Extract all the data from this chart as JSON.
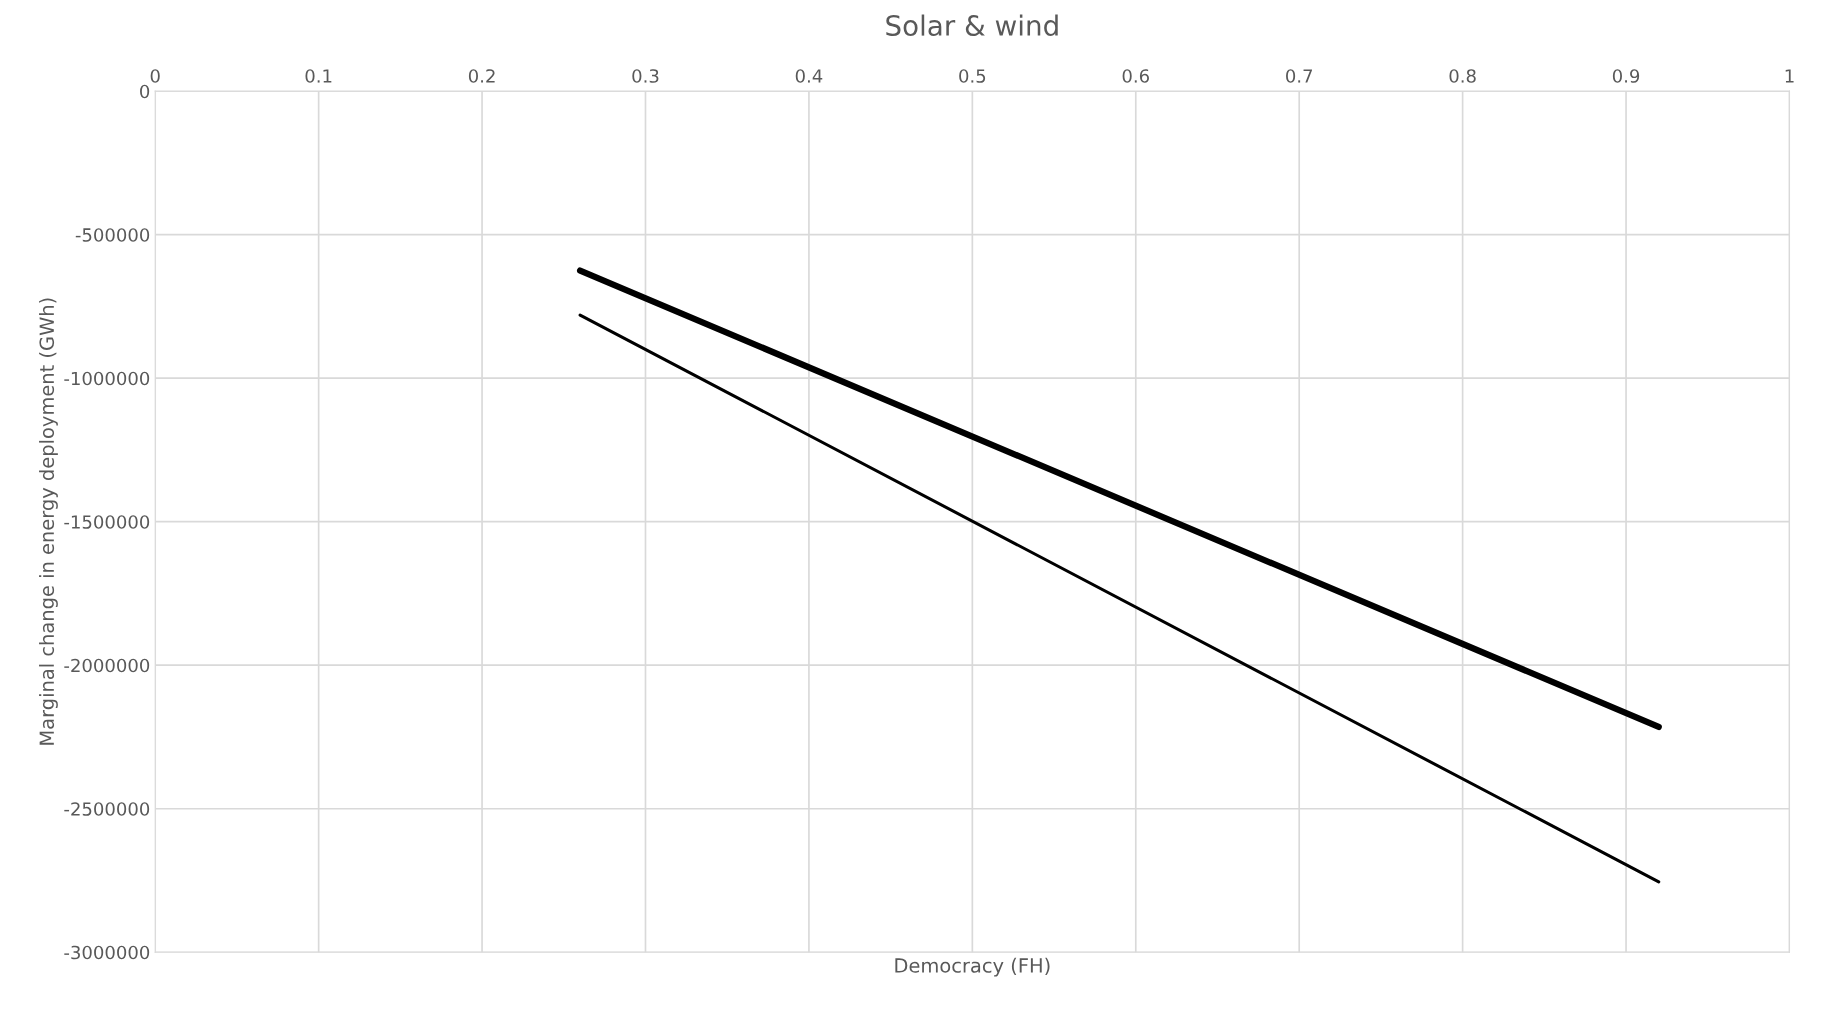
{
  "chart_data": {
    "type": "line",
    "title": "Solar & wind",
    "xlabel": "Democracy (FH)",
    "ylabel": "Marginal change in energy deployment (GWh)",
    "series": [
      {
        "color": "#000000",
        "values": [
          -625000,
          -2215000
        ]
      },
      {
        "color": "#000000",
        "values": [
          -780000,
          -2755000
        ]
      }
    ],
    "x": [
      0.26,
      0.92
    ],
    "xlim": [
      0,
      1
    ],
    "xticks": [
      0,
      0.1,
      0.2,
      0.3,
      0.4,
      0.5,
      0.6,
      0.7,
      0.8,
      0.9,
      1
    ],
    "ylim": [
      -3000000,
      0
    ],
    "yticks": [
      -3000000,
      -2500000,
      -2000000,
      -1500000,
      -1000000,
      -500000,
      0
    ],
    "grid": true,
    "marker": "none",
    "line_style": "solid"
  }
}
